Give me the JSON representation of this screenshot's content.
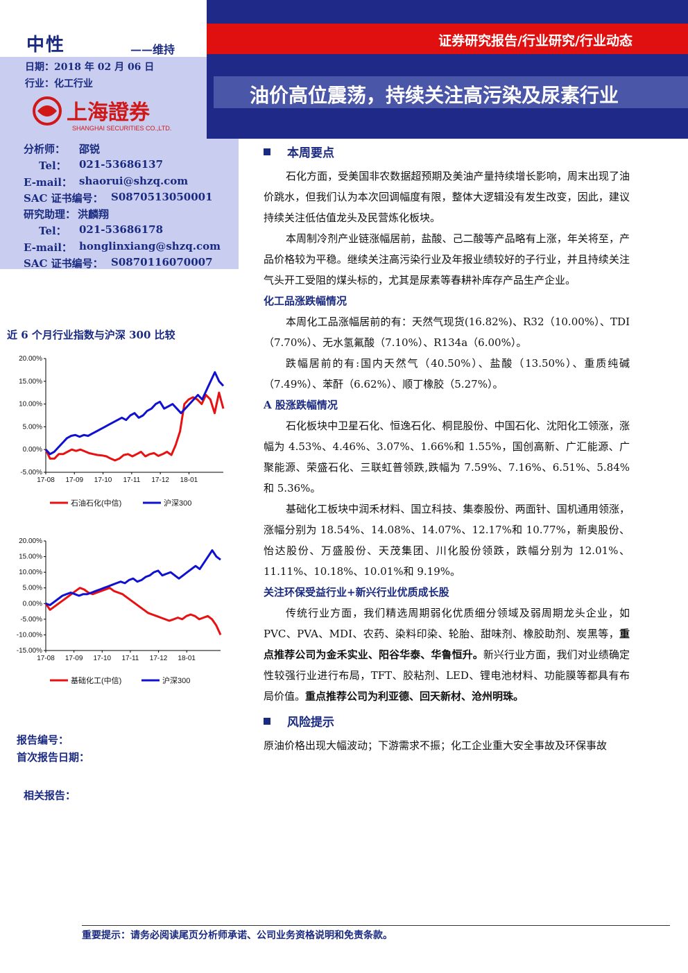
{
  "header": {
    "rating": "中性",
    "rating_action": "——维持",
    "date": "日期：2018 年 02 月 06 日",
    "industry": "行业：化工行业",
    "logo_text": "上海證券",
    "logo_sub": "SHANGHAI SECURITIES CO.,LTD.",
    "breadcrumb": "证券研究报告/行业研究/行业动态",
    "title": "油价高位震荡，持续关注高污染及尿素行业"
  },
  "analyst": [
    {
      "label": "分析师：",
      "value": "邵锐"
    },
    {
      "label": "Tel：",
      "value": "021-53686137"
    },
    {
      "label": "E-mail：",
      "value": "shaorui@shzq.com"
    },
    {
      "label": "SAC 证书编号：",
      "value": "S0870513050001"
    },
    {
      "label": "研究助理：",
      "value": "洪麟翔"
    },
    {
      "label": "Tel：",
      "value": "021-53686178"
    },
    {
      "label": "E-mail：",
      "value": "honglinxiang@shzq.com"
    },
    {
      "label": "SAC 证书编号：",
      "value": "S0870116070007"
    }
  ],
  "charts_heading": "近 6 个月行业指数与沪深 300 比较",
  "chart_data": [
    {
      "type": "line",
      "x_ticks": [
        "17-08",
        "17-09",
        "17-10",
        "17-11",
        "17-12",
        "18-01"
      ],
      "y_ticks": [
        "20.00%",
        "15.00%",
        "10.00%",
        "5.00%",
        "0.00%",
        "-5.00%"
      ],
      "ylim": [
        -5,
        20
      ],
      "legend_position": "bottom",
      "series": [
        {
          "name": "石油石化(中信)",
          "color": "#e81010",
          "values": [
            0,
            -2,
            -2,
            -1,
            -1,
            -0.5,
            0,
            -0.3,
            0,
            -0.4,
            -0.8,
            -1,
            -1.2,
            -1.3,
            -1.5,
            -2,
            -2.4,
            -2,
            -1.2,
            -1,
            -1.5,
            -1,
            -0.5,
            -1.5,
            -1,
            -0.8,
            -1.4,
            -1,
            -0.5,
            -1.2,
            1,
            4,
            10,
            11,
            11.5,
            11,
            10,
            12,
            11,
            8,
            12.5,
            9
          ]
        },
        {
          "name": "沪深300",
          "color": "#1010d0",
          "values": [
            0,
            -1,
            -0.5,
            0.5,
            1.5,
            2.5,
            3,
            3.2,
            2.8,
            3.2,
            3,
            3.5,
            4,
            4.5,
            5,
            5.5,
            6,
            6.5,
            7,
            6.5,
            7.5,
            8,
            7,
            7.5,
            8.5,
            9,
            10,
            10.5,
            9,
            9.5,
            10,
            9,
            8,
            9,
            10,
            11,
            12,
            11,
            13,
            15,
            17,
            15,
            14
          ]
        }
      ]
    },
    {
      "type": "line",
      "x_ticks": [
        "17-08",
        "17-09",
        "17-10",
        "17-11",
        "17-12",
        "18-01"
      ],
      "y_ticks": [
        "20.00%",
        "15.00%",
        "10.00%",
        "5.00%",
        "0.00%",
        "-5.00%",
        "-10.00%",
        "-15.00%"
      ],
      "ylim": [
        -15,
        20
      ],
      "legend_position": "bottom",
      "series": [
        {
          "name": "基础化工(中信)",
          "color": "#e81010",
          "values": [
            0,
            -2,
            -1,
            0,
            1,
            2,
            3,
            4,
            5,
            4.5,
            3.5,
            3,
            3.5,
            4,
            4.5,
            5,
            4,
            3.5,
            3,
            2,
            1,
            0,
            -1,
            -2,
            -3,
            -3.5,
            -4,
            -4.5,
            -5,
            -5.5,
            -5,
            -4.5,
            -5,
            -4,
            -3.5,
            -4,
            -5,
            -4.5,
            -4,
            -5,
            -7,
            -10
          ]
        },
        {
          "name": "沪深300",
          "color": "#1010d0",
          "values": [
            0,
            -0.5,
            0.5,
            1.5,
            2.5,
            3,
            3.5,
            3,
            2.5,
            3,
            3,
            3.5,
            4,
            4.5,
            5,
            5.5,
            6,
            6.5,
            7,
            6.5,
            7.5,
            8,
            7,
            7.5,
            8.5,
            9,
            10,
            10.5,
            9,
            9.5,
            10,
            9,
            8,
            9,
            10,
            11,
            12,
            11,
            13,
            15,
            17,
            15,
            14
          ]
        }
      ]
    }
  ],
  "left_footer": {
    "report_no": "报告编号：",
    "first_date": "首次报告日期：",
    "related": "相关报告："
  },
  "body": {
    "sec1": "本周要点",
    "p1": "石化方面，受美国非农数据超预期及美油产量持续增长影响，周末出现了油价跳水，但我们认为本次回调幅度有限，整体大逻辑没有发生改变，因此，建议持续关注低估值龙头及民营炼化板块。",
    "p2": "本周制冷剂产业链涨幅居前，盐酸、己二酸等产品略有上涨，年关将至，产品价格较为平稳。继续关注高污染行业及年报业绩较好的子行业，并且持续关注气头开工受阻的煤头标的，尤其是尿素等春耕补库存产品生产企业。",
    "sub1": "化工品涨跌幅情况",
    "p3": "本周化工品涨幅居前的有：天然气现货(16.82%)、R32（10.00%）、TDI（7.70%）、无水氢氟酸（7.10%）、R134a（6.00%）。",
    "p4": "跌幅居前的有:国内天然气（40.50%）、盐酸（13.50%）、重质纯碱（7.49%）、苯酐（6.62%）、顺丁橡胶（5.27%）。",
    "sub2": "A 股涨跌幅情况",
    "p5": "石化板块中卫星石化、恒逸石化、桐昆股份、中国石化、沈阳化工领涨，涨幅为 4.53%、4.46%、3.07%、1.66%和 1.55%，国创高新、广汇能源、广聚能源、荣盛石化、三联虹普领跌,跌幅为 7.59%、7.16%、6.51%、5.84%和 5.36%。",
    "p6": "基础化工板块中润禾材料、国立科技、集泰股份、两面针、国机通用领涨，涨幅分别为 18.54%、14.08%、14.07%、12.17%和 10.77%，新奥股份、怡达股份、万盛股份、天茂集团、川化股份领跌，跌幅分别为 12.01%、11.11%、10.18%、10.01%和 9.19%。",
    "sub3": "关注环保受益行业+新兴行业优质成长股",
    "p7a": "传统行业方面，我们精选周期弱化优质细分领域及弱周期龙头企业，如 PVC、PVA、MDI、农药、染料印染、轮胎、甜味剂、橡胶助剂、炭黑等，",
    "p7b": "重点推荐公司为金禾实业、阳谷华泰、华鲁恒升。",
    "p7c": "新兴行业方面，我们对业绩确定性较强行业进行布局，TFT、胶粘剂、LED、锂电池材料、功能膜等都具有布局价值。",
    "p7d": "重点推荐公司为利亚德、回天新材、沧州明珠。",
    "sec2": "风险提示",
    "risk": "原油价格出现大幅波动；下游需求不振；化工企业重大安全事故及环保事故"
  },
  "footer": "重要提示：请务必阅读尾页分析师承诺、公司业务资格说明和免责条款。"
}
